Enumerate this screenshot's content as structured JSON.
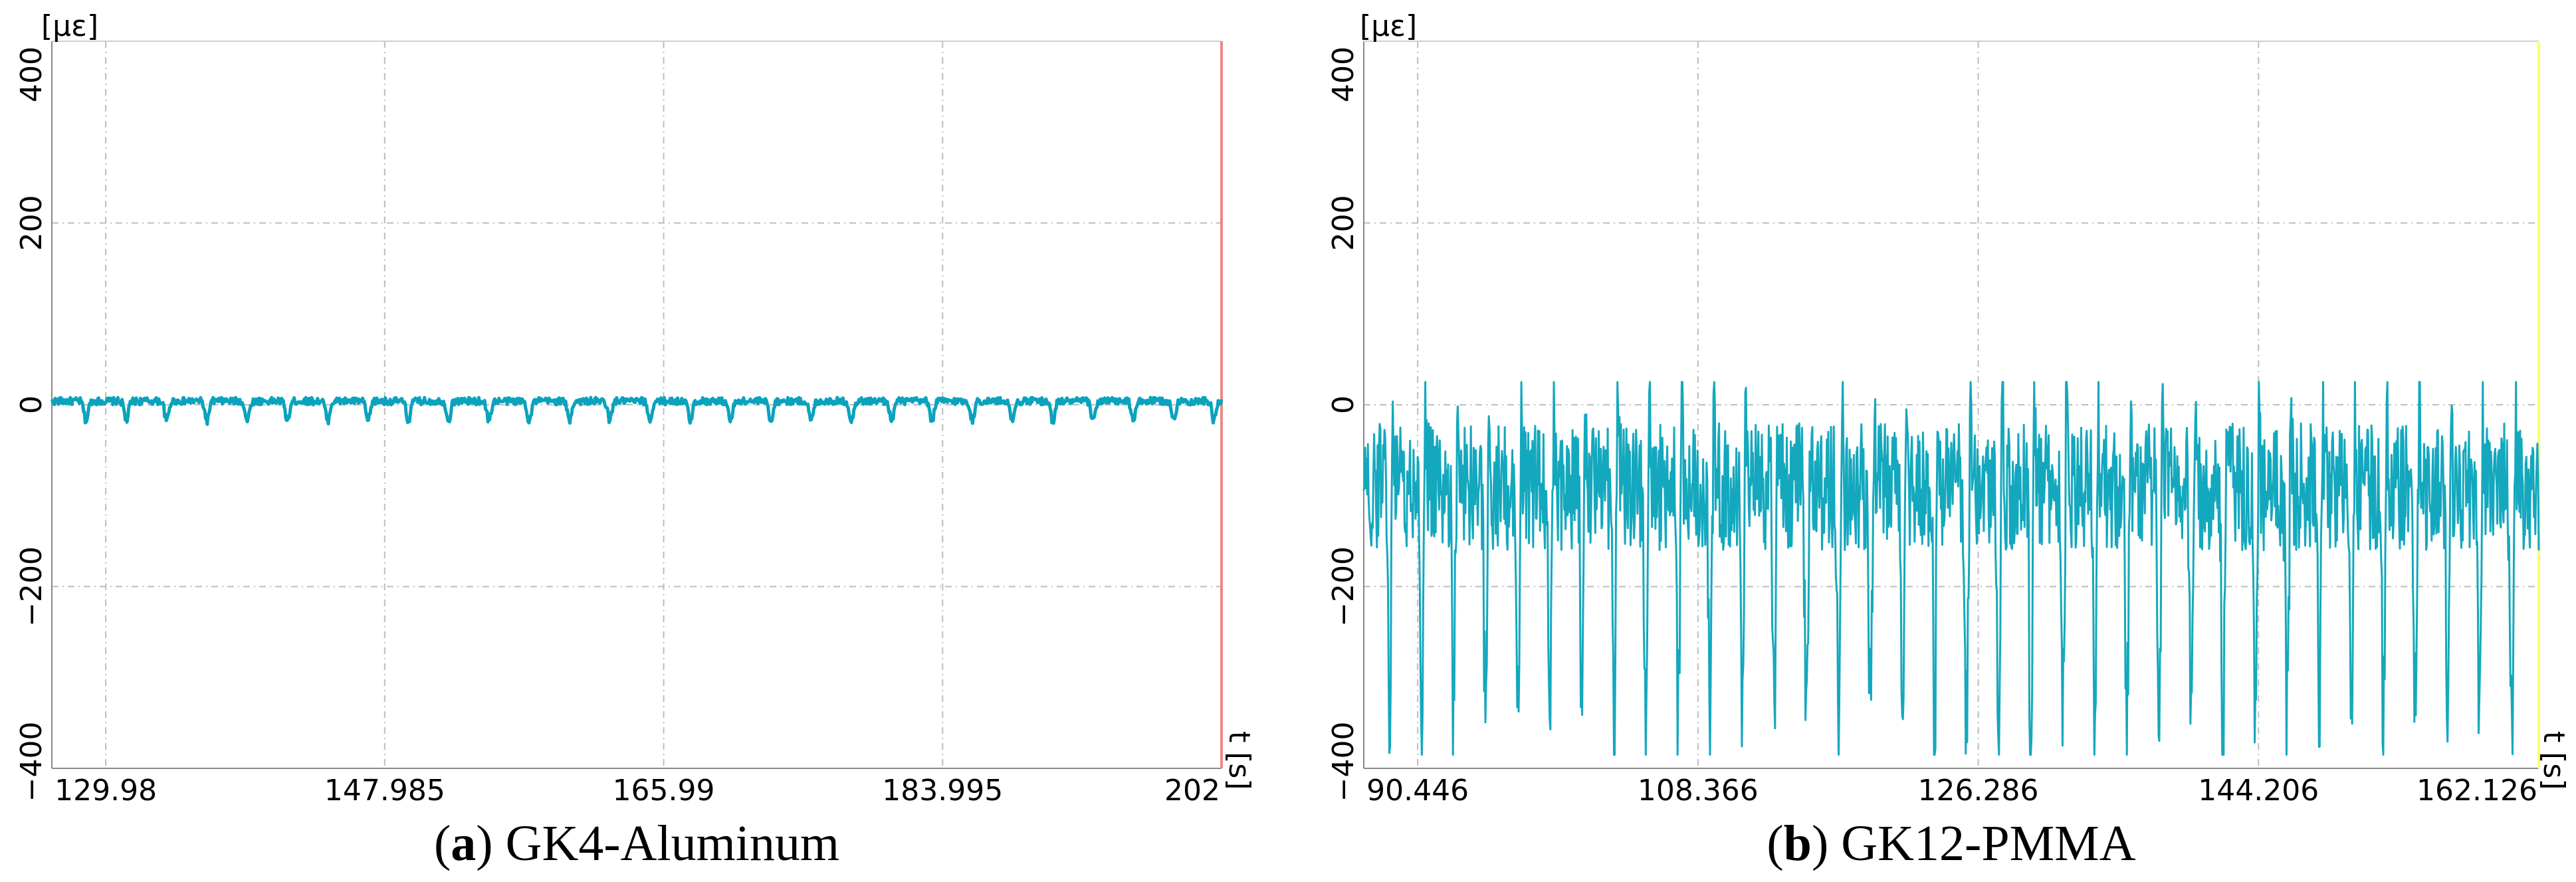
{
  "chart_data": [
    {
      "type": "line",
      "panel_label": "a",
      "caption": "GK4-Aluminum",
      "ylabel": "[με]",
      "xlabel": "t [s]",
      "x_ticks": [
        "129.98",
        "147.985",
        "165.99",
        "183.995",
        "202"
      ],
      "x_tick_values": [
        129.98,
        147.985,
        165.99,
        183.995,
        202
      ],
      "xlim": [
        126.5,
        202
      ],
      "y_ticks": [
        -400,
        -200,
        0,
        200,
        400
      ],
      "ylim": [
        -400,
        400
      ],
      "grid": true,
      "cursor_color": "#ee8888",
      "series": [
        {
          "color": "#0aa3bd",
          "period_s": 2.6,
          "baseline": 0,
          "dip_min": -20,
          "noise": 8,
          "description_values": {
            "max": 8,
            "min": -24
          }
        }
      ]
    },
    {
      "type": "line",
      "panel_label": "b",
      "caption": "GK12-PMMA",
      "ylabel": "[με]",
      "xlabel": "t [s]",
      "x_ticks": [
        "90.446",
        "108.366",
        "126.286",
        "144.206",
        "162.126"
      ],
      "x_tick_values": [
        90.446,
        108.366,
        126.286,
        144.206,
        162.126
      ],
      "xlim": [
        87.0,
        162.126
      ],
      "y_ticks": [
        -400,
        -200,
        0,
        200,
        400
      ],
      "ylim": [
        -400,
        400
      ],
      "grid": true,
      "cursor_color": "#ffff66",
      "series": [
        {
          "color": "#14a8be",
          "period_s": 2.05,
          "baseline": -90,
          "dip_min": -360,
          "noise": 70,
          "description_values": {
            "max": 25,
            "min": -385
          }
        }
      ]
    }
  ]
}
